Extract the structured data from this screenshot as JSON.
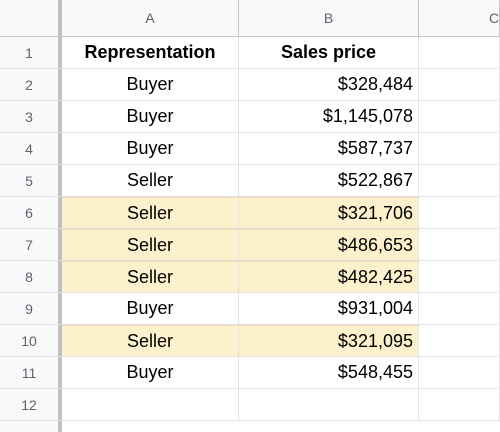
{
  "columns": [
    "A",
    "B",
    "C"
  ],
  "header": {
    "row": "1",
    "representation": "Representation",
    "sales_price": "Sales price"
  },
  "rows": [
    {
      "n": "2",
      "rep": "Buyer",
      "price": "$328,484"
    },
    {
      "n": "3",
      "rep": "Buyer",
      "price": "$1,145,078"
    },
    {
      "n": "4",
      "rep": "Buyer",
      "price": "$587,737"
    },
    {
      "n": "5",
      "rep": "Seller",
      "price": "$522,867"
    },
    {
      "n": "6",
      "rep": "Seller",
      "price": "$321,706",
      "highlight": true
    },
    {
      "n": "7",
      "rep": "Seller",
      "price": "$486,653",
      "highlight": true
    },
    {
      "n": "8",
      "rep": "Seller",
      "price": "$482,425",
      "highlight": true
    },
    {
      "n": "9",
      "rep": "Buyer",
      "price": "$931,004"
    },
    {
      "n": "10",
      "rep": "Seller",
      "price": "$321,095",
      "highlight": true
    },
    {
      "n": "11",
      "rep": "Buyer",
      "price": "$548,455"
    }
  ],
  "empty_row": "12",
  "colors": {
    "highlight": "#fdf1cd",
    "header_bg": "#f8f9fa"
  }
}
